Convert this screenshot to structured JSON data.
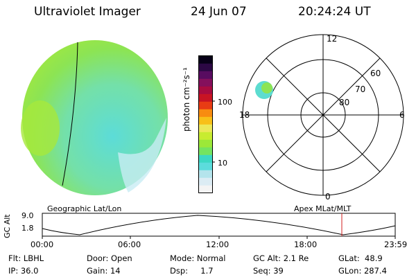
{
  "header": {
    "instrument": "Ultraviolet Imager",
    "date": "24 Jun 07",
    "time": "20:24:24 UT"
  },
  "colorbar": {
    "unit_label": "photon cm⁻²s⁻¹",
    "ticks": [
      "100",
      "10"
    ],
    "colors": [
      "#f4f4f4",
      "#dcecf4",
      "#b4e4ec",
      "#5cdcdc",
      "#3cd8c4",
      "#74e460",
      "#9ce838",
      "#c8ec30",
      "#ece858",
      "#f8c018",
      "#f88c10",
      "#e83c14",
      "#c81424",
      "#a80c40",
      "#84105c",
      "#580c60",
      "#2c0844",
      "#080018"
    ]
  },
  "polar_plot": {
    "mlt_labels": [
      "12",
      "18",
      "6",
      "0"
    ],
    "lat_labels": [
      "60",
      "70",
      "80"
    ]
  },
  "orbit": {
    "ylabel": "GC Alt",
    "y_ticks": [
      "9.0",
      "1.8"
    ],
    "left_title": "Geographic Lat/Lon",
    "right_title": "Apex MLat/MLT",
    "x_ticks": [
      "00:00",
      "06:00",
      "12:00",
      "18:00",
      "23:59"
    ],
    "marker_color": "#d01c1c"
  },
  "info": {
    "flt": "Flt: LBHL",
    "ip": "IP: 36.0",
    "door": "Door: Open",
    "gain": "Gain: 14",
    "mode": "Mode: Normal",
    "dsp": "Dsp:     1.7",
    "gc_alt": "GC Alt: 2.1 Re",
    "seq": "Seq: 39",
    "glat": "GLat:  48.9",
    "glon": "GLon: 287.4"
  }
}
